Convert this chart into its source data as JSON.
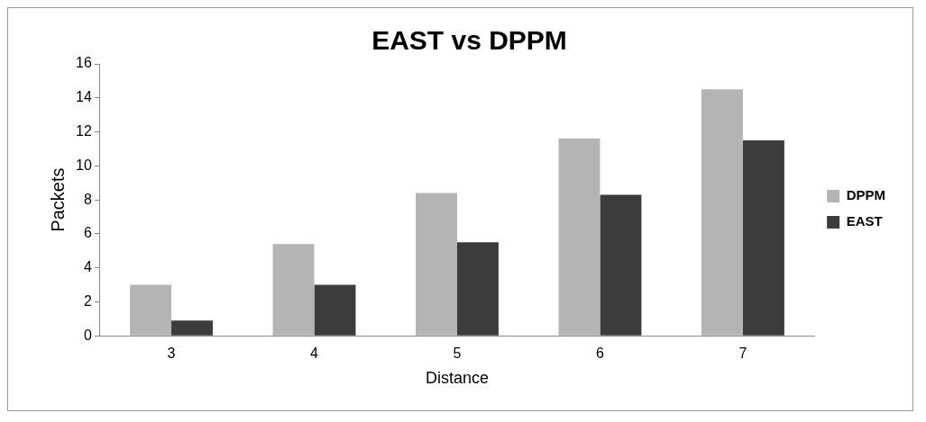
{
  "chart_data": {
    "type": "bar",
    "title": "EAST vs DPPM",
    "xlabel": "Distance",
    "ylabel": "Packets",
    "categories": [
      "3",
      "4",
      "5",
      "6",
      "7"
    ],
    "series": [
      {
        "name": "DPPM",
        "color": "#b4b4b4",
        "values": [
          3,
          5.4,
          8.4,
          11.6,
          14.5
        ]
      },
      {
        "name": "EAST",
        "color": "#3c3c3c",
        "values": [
          0.9,
          3,
          5.5,
          8.3,
          11.5
        ]
      }
    ],
    "ylim": [
      0,
      16
    ],
    "yticks": [
      0,
      2,
      4,
      6,
      8,
      10,
      12,
      14,
      16
    ],
    "grid": false,
    "legend": "right"
  }
}
